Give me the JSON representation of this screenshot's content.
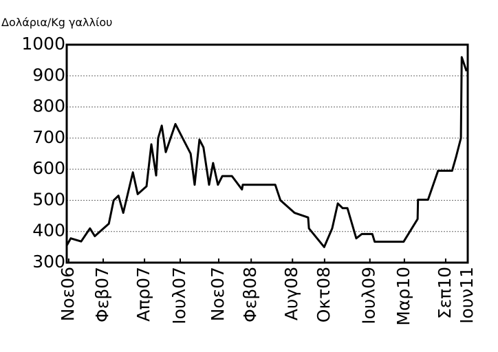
{
  "chart_data": {
    "type": "line",
    "y_label": "Δολάρια/Kg γαλλίου",
    "x": [
      0,
      1.0,
      3.6,
      5.8,
      7.0,
      10.5,
      11.7,
      12.9,
      14.1,
      16.5,
      17.7,
      19.9,
      21.1,
      22.3,
      22.8,
      23.7,
      24.7,
      27.1,
      30.9,
      31.9,
      33.1,
      34.1,
      35.5,
      36.5,
      37.7,
      38.8,
      41.2,
      43.7,
      43.9,
      52.0,
      53.3,
      56.8,
      60.2,
      60.4,
      64.2,
      66.2,
      67.6,
      68.8,
      70.0,
      72.2,
      73.6,
      76.2,
      76.8,
      84.0,
      87.5,
      87.6,
      90.1,
      92.6,
      96.1,
      97.1,
      98.3,
      98.5,
      99.7
    ],
    "series": [
      {
        "color": "#000000",
        "values": [
          355,
          378,
          368,
          410,
          385,
          425,
          500,
          515,
          460,
          590,
          520,
          545,
          680,
          580,
          700,
          740,
          655,
          745,
          650,
          550,
          695,
          670,
          550,
          620,
          550,
          578,
          578,
          535,
          550,
          550,
          500,
          460,
          445,
          410,
          350,
          410,
          490,
          475,
          475,
          378,
          392,
          392,
          367,
          367,
          440,
          502,
          502,
          595,
          595,
          640,
          700,
          960,
          915
        ]
      }
    ],
    "xlim": [
      0,
      100
    ],
    "xticks": [
      {
        "value": 0.5,
        "label": "Νοε06"
      },
      {
        "value": 9.1,
        "label": "Φεβ07"
      },
      {
        "value": 19.4,
        "label": "Απρ07"
      },
      {
        "value": 28.3,
        "label": "Ιουλ07"
      },
      {
        "value": 37.9,
        "label": "Νοε07"
      },
      {
        "value": 46.0,
        "label": "Φεβ08"
      },
      {
        "value": 56.3,
        "label": "Αυγ08"
      },
      {
        "value": 64.3,
        "label": "Οκτ08"
      },
      {
        "value": 75.6,
        "label": "Ιουλ09"
      },
      {
        "value": 84.2,
        "label": "Μαρ10"
      },
      {
        "value": 94.5,
        "label": "Σεπ10"
      },
      {
        "value": 100,
        "label": "Ιουν11"
      }
    ],
    "ylim": [
      300,
      1000
    ],
    "yticks": [
      300,
      400,
      500,
      600,
      700,
      800,
      900,
      1000
    ],
    "grid": true
  }
}
